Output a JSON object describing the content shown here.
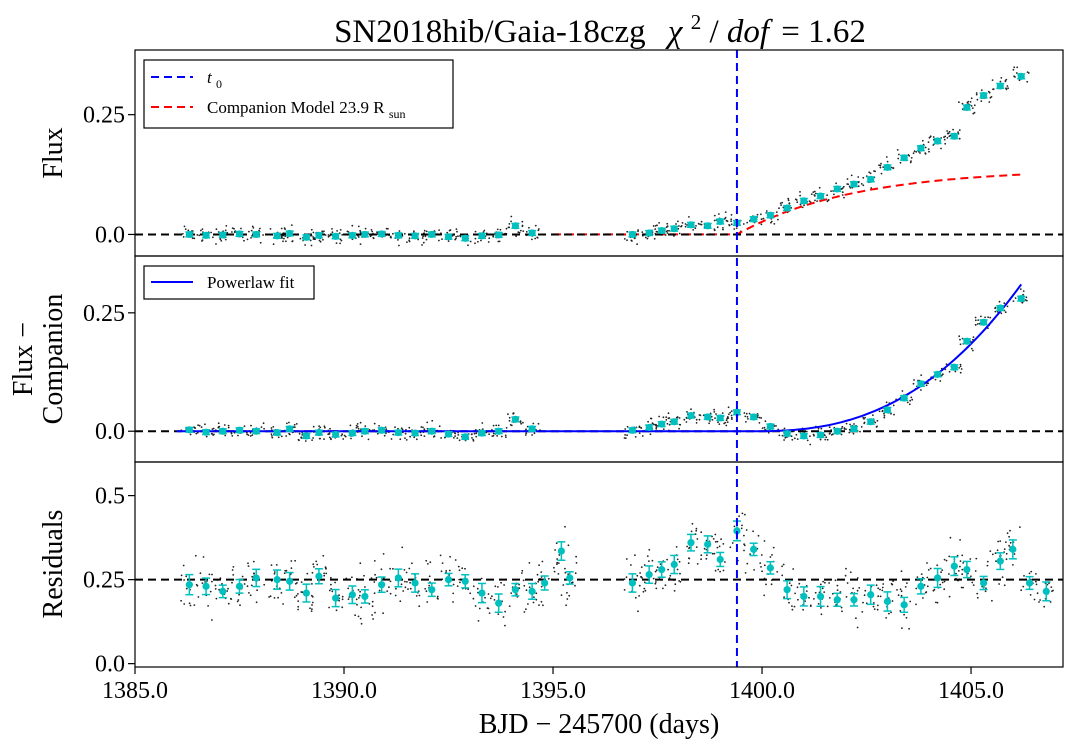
{
  "chart_data": {
    "type": "scatter",
    "title": {
      "object": "SN2018hib/Gaia-18czg",
      "chi_symbol": "χ",
      "chi_power": "2",
      "slash": "/",
      "dof": "dof",
      "equals_value": "= 1.62"
    },
    "xlabel": "BJD − 245700 (days)",
    "xlim": [
      1385.0,
      1407.2
    ],
    "xticks": [
      1385.0,
      1390.0,
      1395.0,
      1400.0,
      1405.0
    ],
    "xtick_labels": [
      "1385.0",
      "1390.0",
      "1395.0",
      "1400.0",
      "1405.0"
    ],
    "t0": 1399.4,
    "colors": {
      "binned": "#00bfbf",
      "raw": "#222222",
      "t0_line": "#0000ff",
      "companion_model": "#ff0000",
      "powerlaw": "#0000ff",
      "zero_line": "#000000"
    },
    "panels": [
      {
        "id": "flux",
        "ylabel": "Flux",
        "ylim": [
          -0.045,
          0.385
        ],
        "yticks": [
          0.0,
          0.25
        ],
        "ytick_labels": [
          "0.0",
          "0.25"
        ],
        "reference_line": 0.0,
        "legend": {
          "t0_label": "t",
          "t0_sub": "0",
          "model_label": "Companion Model  23.9  R",
          "model_sub": "sun"
        },
        "binned_points": [
          [
            1386.3,
            0.0
          ],
          [
            1386.7,
            -0.002
          ],
          [
            1387.1,
            -0.001
          ],
          [
            1387.5,
            0.001
          ],
          [
            1387.9,
            0.0
          ],
          [
            1388.4,
            -0.003
          ],
          [
            1388.7,
            0.002
          ],
          [
            1389.1,
            -0.006
          ],
          [
            1389.4,
            -0.002
          ],
          [
            1389.8,
            -0.004
          ],
          [
            1390.2,
            -0.002
          ],
          [
            1390.5,
            0.0
          ],
          [
            1390.9,
            0.001
          ],
          [
            1391.3,
            -0.002
          ],
          [
            1391.7,
            -0.003
          ],
          [
            1392.1,
            0.0
          ],
          [
            1392.5,
            -0.005
          ],
          [
            1392.9,
            -0.008
          ],
          [
            1393.3,
            -0.003
          ],
          [
            1393.7,
            -0.001
          ],
          [
            1394.1,
            0.018
          ],
          [
            1394.5,
            0.003
          ],
          [
            1396.9,
            0.0
          ],
          [
            1397.3,
            0.003
          ],
          [
            1397.6,
            0.008
          ],
          [
            1397.9,
            0.012
          ],
          [
            1398.3,
            0.02
          ],
          [
            1398.7,
            0.018
          ],
          [
            1399.0,
            0.027
          ],
          [
            1399.4,
            0.024
          ],
          [
            1399.8,
            0.032
          ],
          [
            1400.2,
            0.04
          ],
          [
            1400.6,
            0.055
          ],
          [
            1401.0,
            0.07
          ],
          [
            1401.4,
            0.08
          ],
          [
            1401.8,
            0.095
          ],
          [
            1402.2,
            0.105
          ],
          [
            1402.6,
            0.115
          ],
          [
            1403.0,
            0.14
          ],
          [
            1403.4,
            0.16
          ],
          [
            1403.8,
            0.18
          ],
          [
            1404.2,
            0.195
          ],
          [
            1404.6,
            0.205
          ],
          [
            1404.9,
            0.265
          ],
          [
            1405.3,
            0.29
          ],
          [
            1405.7,
            0.31
          ],
          [
            1406.2,
            0.33
          ]
        ],
        "model_curve": {
          "start": 1395.0,
          "end": 1406.2,
          "plateau": 0.137
        }
      },
      {
        "id": "flux_minus_companion",
        "ylabel": "Flux −",
        "ylabel2": "Companion",
        "ylim": [
          -0.065,
          0.37
        ],
        "yticks": [
          0.0,
          0.25
        ],
        "ytick_labels": [
          "0.0",
          "0.25"
        ],
        "reference_line": 0.0,
        "legend": {
          "powerlaw_label": "Powerlaw fit"
        },
        "binned_points": [
          [
            1386.3,
            0.003
          ],
          [
            1386.7,
            -0.002
          ],
          [
            1387.1,
            0.0
          ],
          [
            1387.5,
            0.002
          ],
          [
            1387.9,
            0.0
          ],
          [
            1388.4,
            -0.003
          ],
          [
            1388.7,
            0.005
          ],
          [
            1389.1,
            -0.01
          ],
          [
            1389.4,
            -0.003
          ],
          [
            1389.8,
            -0.007
          ],
          [
            1390.2,
            -0.004
          ],
          [
            1390.5,
            0.0
          ],
          [
            1390.9,
            0.002
          ],
          [
            1391.3,
            -0.003
          ],
          [
            1391.7,
            -0.004
          ],
          [
            1392.1,
            0.0
          ],
          [
            1392.5,
            -0.006
          ],
          [
            1392.9,
            -0.012
          ],
          [
            1393.3,
            -0.004
          ],
          [
            1393.7,
            0.0
          ],
          [
            1394.1,
            0.025
          ],
          [
            1394.5,
            0.005
          ],
          [
            1396.9,
            0.002
          ],
          [
            1397.3,
            0.008
          ],
          [
            1397.6,
            0.015
          ],
          [
            1397.9,
            0.02
          ],
          [
            1398.3,
            0.033
          ],
          [
            1398.7,
            0.03
          ],
          [
            1399.0,
            0.028
          ],
          [
            1399.4,
            0.04
          ],
          [
            1399.8,
            0.03
          ],
          [
            1400.2,
            0.01
          ],
          [
            1400.6,
            -0.005
          ],
          [
            1401.0,
            -0.01
          ],
          [
            1401.4,
            -0.008
          ],
          [
            1401.8,
            0.0
          ],
          [
            1402.2,
            0.005
          ],
          [
            1402.6,
            0.02
          ],
          [
            1403.0,
            0.045
          ],
          [
            1403.4,
            0.07
          ],
          [
            1403.8,
            0.1
          ],
          [
            1404.2,
            0.12
          ],
          [
            1404.6,
            0.135
          ],
          [
            1404.9,
            0.19
          ],
          [
            1405.3,
            0.23
          ],
          [
            1405.7,
            0.26
          ],
          [
            1406.2,
            0.28
          ]
        ],
        "powerlaw": {
          "t_start": 1399.8,
          "end": 1406.2,
          "amplitude": 0.31,
          "index": 2.5
        }
      },
      {
        "id": "residuals",
        "ylabel": "Residuals",
        "ylim": [
          -0.01,
          0.6
        ],
        "yticks": [
          0.0,
          0.25,
          0.5
        ],
        "ytick_labels": [
          "0.0",
          "0.25",
          "0.5"
        ],
        "reference_line": 0.25,
        "binned_points": [
          [
            1386.3,
            0.235
          ],
          [
            1386.7,
            0.23
          ],
          [
            1387.1,
            0.215
          ],
          [
            1387.5,
            0.23
          ],
          [
            1387.9,
            0.255
          ],
          [
            1388.4,
            0.25
          ],
          [
            1388.7,
            0.245
          ],
          [
            1389.1,
            0.21
          ],
          [
            1389.4,
            0.26
          ],
          [
            1389.8,
            0.195
          ],
          [
            1390.2,
            0.205
          ],
          [
            1390.5,
            0.2
          ],
          [
            1390.9,
            0.235
          ],
          [
            1391.3,
            0.255
          ],
          [
            1391.7,
            0.24
          ],
          [
            1392.1,
            0.22
          ],
          [
            1392.5,
            0.25
          ],
          [
            1392.9,
            0.245
          ],
          [
            1393.3,
            0.21
          ],
          [
            1393.7,
            0.18
          ],
          [
            1394.1,
            0.22
          ],
          [
            1394.5,
            0.215
          ],
          [
            1394.8,
            0.24
          ],
          [
            1395.2,
            0.335
          ],
          [
            1395.4,
            0.255
          ],
          [
            1396.9,
            0.24
          ],
          [
            1397.3,
            0.265
          ],
          [
            1397.6,
            0.28
          ],
          [
            1397.9,
            0.295
          ],
          [
            1398.3,
            0.36
          ],
          [
            1398.7,
            0.355
          ],
          [
            1399.0,
            0.31
          ],
          [
            1399.4,
            0.395
          ],
          [
            1399.8,
            0.34
          ],
          [
            1400.2,
            0.285
          ],
          [
            1400.6,
            0.22
          ],
          [
            1401.0,
            0.2
          ],
          [
            1401.4,
            0.2
          ],
          [
            1401.8,
            0.19
          ],
          [
            1402.2,
            0.19
          ],
          [
            1402.6,
            0.205
          ],
          [
            1403.0,
            0.185
          ],
          [
            1403.4,
            0.175
          ],
          [
            1403.8,
            0.23
          ],
          [
            1404.2,
            0.255
          ],
          [
            1404.6,
            0.29
          ],
          [
            1404.9,
            0.28
          ],
          [
            1405.3,
            0.24
          ],
          [
            1405.7,
            0.305
          ],
          [
            1406.0,
            0.34
          ],
          [
            1406.4,
            0.24
          ],
          [
            1406.8,
            0.215
          ]
        ]
      }
    ]
  }
}
